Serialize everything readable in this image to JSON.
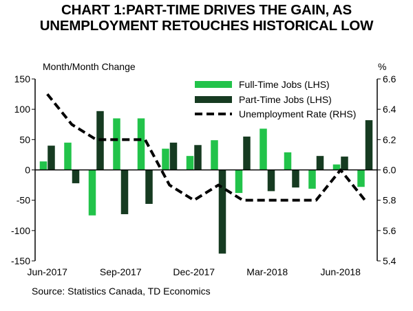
{
  "title": {
    "line1": "CHART 1:PART-TIME DRIVES THE GAIN, AS",
    "line2": "UNEMPLOYMENT RETOUCHES HISTORICAL LOW"
  },
  "source": "Source: Statistics Canada, TD Economics",
  "colors": {
    "full_time": "#22c34a",
    "part_time": "#163b21",
    "unemployment": "#000000"
  },
  "chart_data": {
    "type": "bar",
    "title": "CHART 1:PART-TIME DRIVES THE GAIN, AS UNEMPLOYMENT RETOUCHES HISTORICAL LOW",
    "ylabel_left": "Month/Month Change",
    "ylabel_right": "%",
    "categories": [
      "Jun-2017",
      "Jul-2017",
      "Aug-2017",
      "Sep-2017",
      "Oct-2017",
      "Nov-2017",
      "Dec-2017",
      "Jan-2018",
      "Feb-2018",
      "Mar-2018",
      "Apr-2018",
      "May-2018",
      "Jun-2018",
      "Jul-2018"
    ],
    "x_tick_labels": [
      "Jun-2017",
      "Sep-2017",
      "Dec-2017",
      "Mar-2018",
      "Jun-2018"
    ],
    "x_tick_indices": [
      0,
      3,
      6,
      9,
      12
    ],
    "ylim_left": [
      -150,
      150
    ],
    "yticks_left": [
      -150,
      -100,
      -50,
      0,
      50,
      100,
      150
    ],
    "ylim_right": [
      5.4,
      6.6
    ],
    "yticks_right": [
      "5.4",
      "5.6",
      "5.8",
      "6.0",
      "6.2",
      "6.4",
      "6.6"
    ],
    "series": [
      {
        "name": "Full-Time Jobs (LHS)",
        "axis": "left",
        "kind": "bar",
        "values": [
          14,
          45,
          -75,
          85,
          85,
          35,
          23,
          49,
          -38,
          68,
          29,
          -31,
          9,
          -28
        ]
      },
      {
        "name": "Part-Time Jobs (LHS)",
        "axis": "left",
        "kind": "bar",
        "values": [
          40,
          -22,
          97,
          -73,
          -56,
          45,
          41,
          -138,
          55,
          -35,
          -29,
          23,
          22,
          82
        ]
      },
      {
        "name": "Unemployment Rate (RHS)",
        "axis": "right",
        "kind": "line",
        "style": "dashed",
        "values": [
          6.5,
          6.3,
          6.2,
          6.2,
          6.2,
          5.9,
          5.8,
          5.9,
          5.8,
          5.8,
          5.8,
          5.8,
          6.0,
          5.8
        ]
      }
    ],
    "legend": "top-right"
  }
}
